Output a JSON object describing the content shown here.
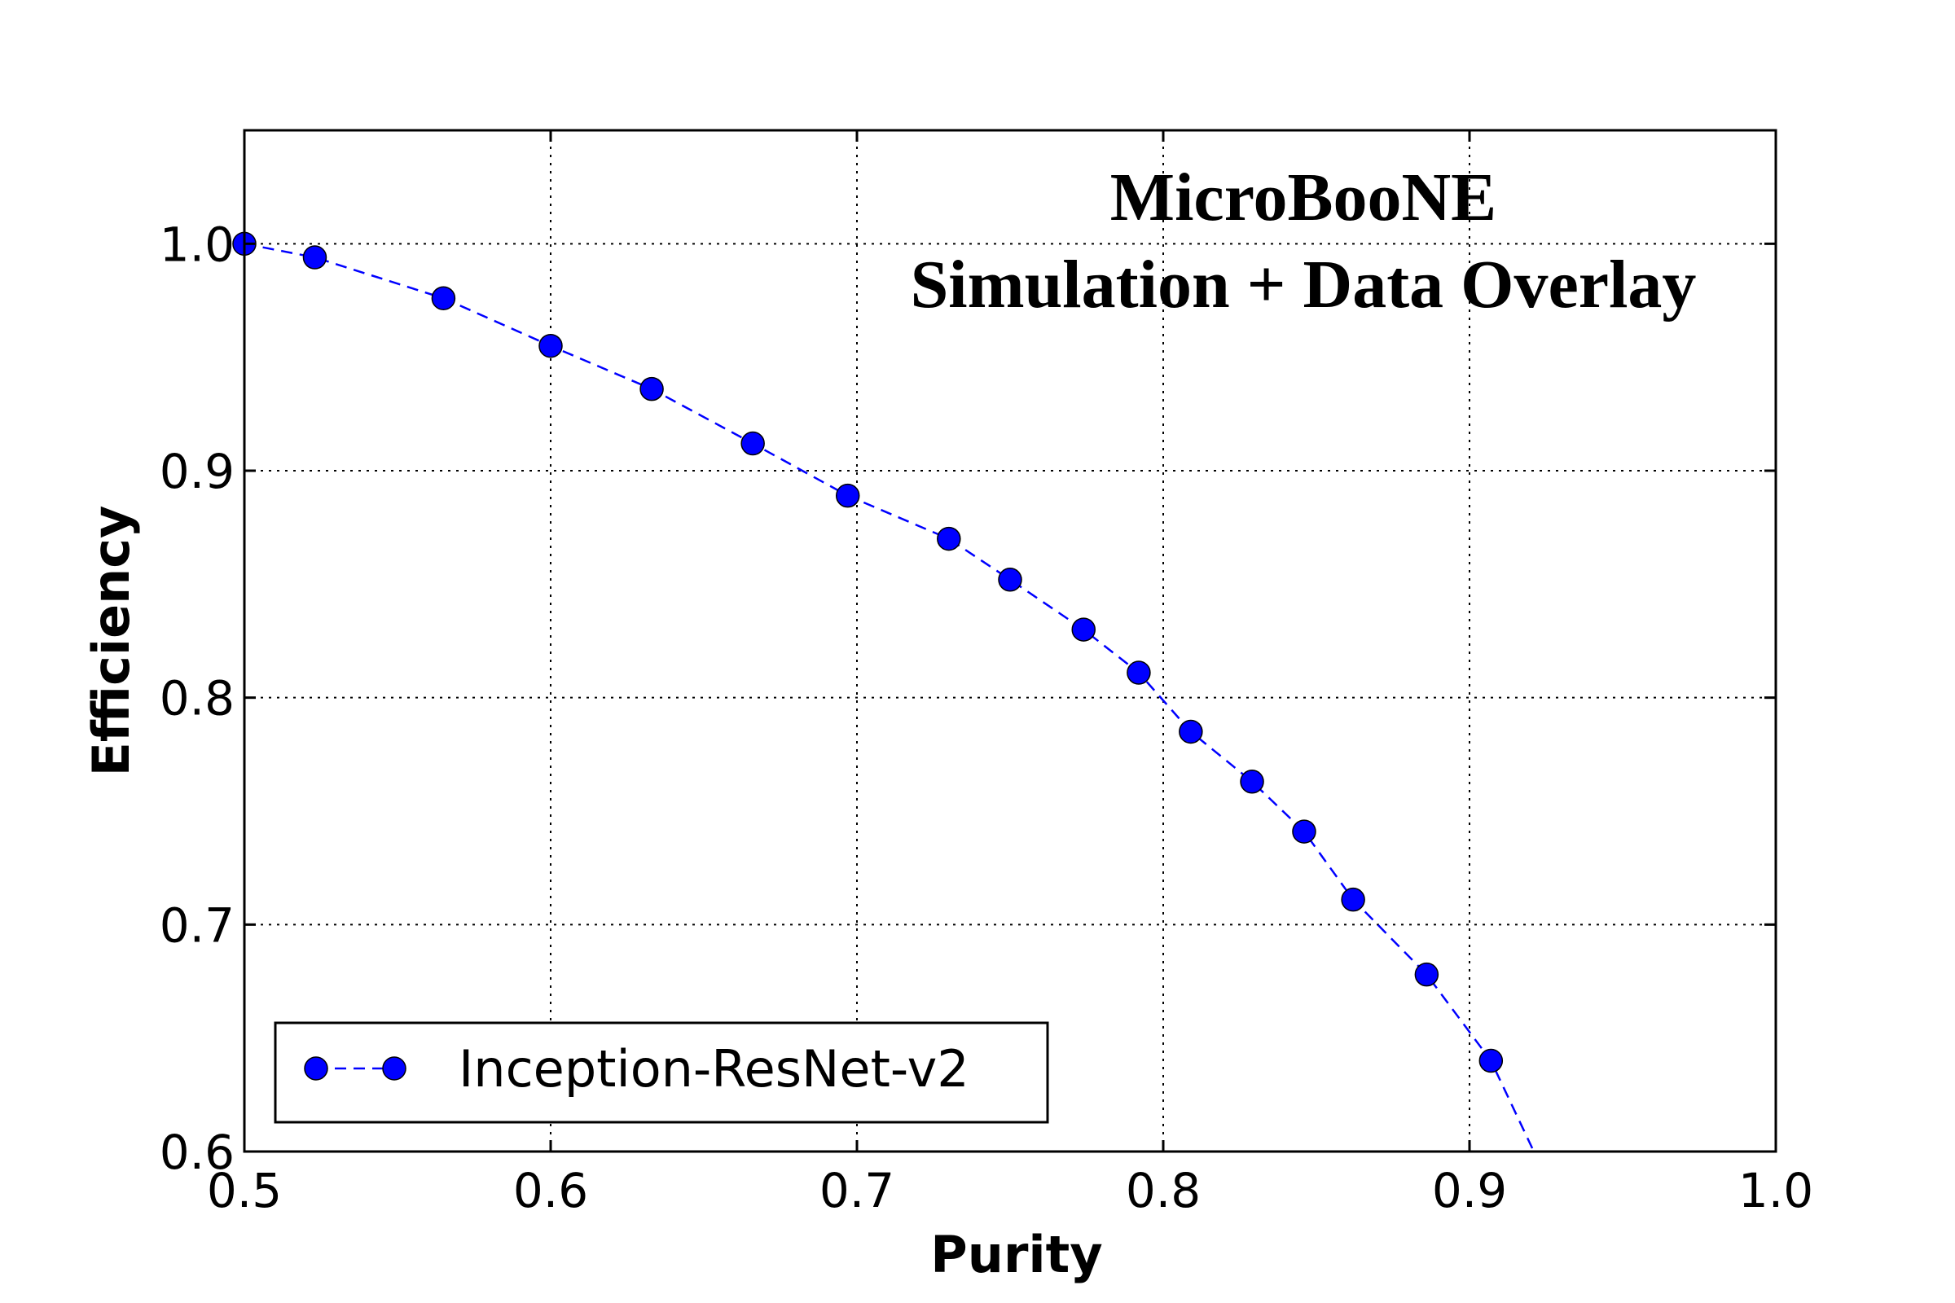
{
  "chart_data": {
    "type": "line",
    "title": "",
    "annotation": [
      "MicroBooNE",
      "Simulation + Data Overlay"
    ],
    "xlabel": "Purity",
    "ylabel": "Efficiency",
    "xlim": [
      0.5,
      1.0
    ],
    "ylim": [
      0.6,
      1.05
    ],
    "xticks": [
      "0.5",
      "0.6",
      "0.7",
      "0.8",
      "0.9",
      "1.0"
    ],
    "yticks": [
      "0.6",
      "0.7",
      "0.8",
      "0.9",
      "1.0"
    ],
    "grid": true,
    "legend_position": "lower-left",
    "series": [
      {
        "name": "Inception-ResNet-v2",
        "color": "#0000ff",
        "marker": "circle",
        "linestyle": "dashed",
        "x": [
          0.5,
          0.523,
          0.565,
          0.6,
          0.633,
          0.666,
          0.697,
          0.73,
          0.75,
          0.774,
          0.792,
          0.809,
          0.829,
          0.846,
          0.862,
          0.886,
          0.907
        ],
        "y": [
          1.0,
          0.994,
          0.976,
          0.955,
          0.936,
          0.912,
          0.889,
          0.87,
          0.852,
          0.83,
          0.811,
          0.785,
          0.763,
          0.741,
          0.711,
          0.678,
          0.64
        ],
        "tail_line": {
          "x": [
            0.907,
            0.921
          ],
          "y": [
            0.64,
            0.6
          ]
        }
      }
    ]
  }
}
